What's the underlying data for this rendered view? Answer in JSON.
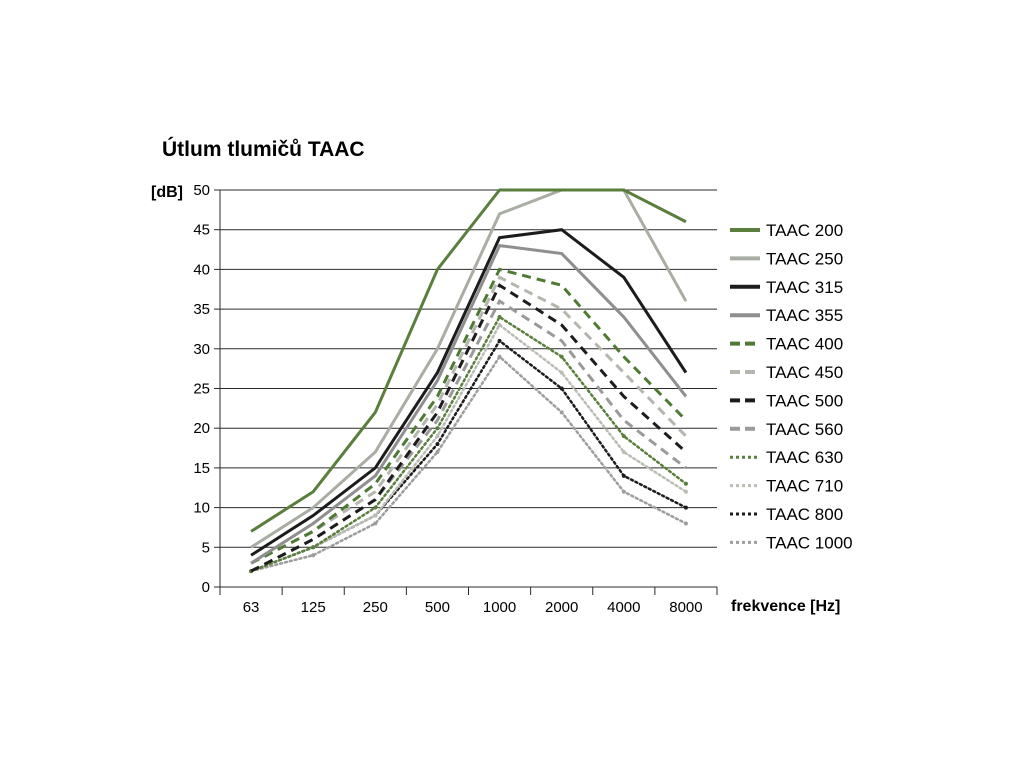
{
  "chart_data": {
    "type": "line",
    "title": "Útlum tlumičů TAAC",
    "ylabel": "[dB]",
    "xlabel": "frekvence [Hz]",
    "categories": [
      "63",
      "125",
      "250",
      "500",
      "1000",
      "2000",
      "4000",
      "8000"
    ],
    "ylim": [
      0,
      50
    ],
    "yticks": [
      0,
      5,
      10,
      15,
      20,
      25,
      30,
      35,
      40,
      45,
      50
    ],
    "grid": "horizontal",
    "legend_position": "right",
    "series": [
      {
        "name": "TAAC 200",
        "color": "#5a7f3c",
        "style": "solid",
        "values": [
          7,
          12,
          22,
          40,
          50,
          50,
          50,
          46
        ]
      },
      {
        "name": "TAAC 250",
        "color": "#a9aea4",
        "style": "solid",
        "values": [
          5,
          10,
          17,
          30,
          47,
          50,
          50,
          36
        ]
      },
      {
        "name": "TAAC 315",
        "color": "#1c1c1c",
        "style": "solid",
        "values": [
          4,
          9,
          15,
          27,
          44,
          45,
          39,
          27
        ]
      },
      {
        "name": "TAAC 355",
        "color": "#8f8f8f",
        "style": "solid",
        "values": [
          3,
          8,
          14,
          26,
          43,
          42,
          34,
          24
        ]
      },
      {
        "name": "TAAC 400",
        "color": "#4e7a34",
        "style": "dashed",
        "values": [
          3,
          7,
          13,
          24,
          40,
          38,
          29,
          21
        ]
      },
      {
        "name": "TAAC 450",
        "color": "#b3b7ad",
        "style": "dashed",
        "values": [
          3,
          7,
          12,
          23,
          39,
          35,
          27,
          19
        ]
      },
      {
        "name": "TAAC 500",
        "color": "#1c1c1c",
        "style": "dashed",
        "values": [
          2,
          6,
          11,
          22,
          38,
          33,
          24,
          17
        ]
      },
      {
        "name": "TAAC 560",
        "color": "#9a9a9a",
        "style": "dashed",
        "values": [
          2,
          6,
          11,
          21,
          36,
          31,
          21,
          15
        ]
      },
      {
        "name": "TAAC 630",
        "color": "#5a7f3c",
        "style": "dotted",
        "values": [
          2,
          5,
          10,
          20,
          34,
          29,
          19,
          13
        ]
      },
      {
        "name": "TAAC 710",
        "color": "#b9bdb3",
        "style": "dotted",
        "values": [
          2,
          5,
          9,
          19,
          33,
          27,
          17,
          12
        ]
      },
      {
        "name": "TAAC 800",
        "color": "#1c1c1c",
        "style": "dotted",
        "values": [
          2,
          5,
          9,
          18,
          31,
          25,
          14,
          10
        ]
      },
      {
        "name": "TAAC 1000",
        "color": "#9d9d9d",
        "style": "dotted",
        "values": [
          2,
          4,
          8,
          17,
          29,
          22,
          12,
          8
        ]
      }
    ]
  }
}
